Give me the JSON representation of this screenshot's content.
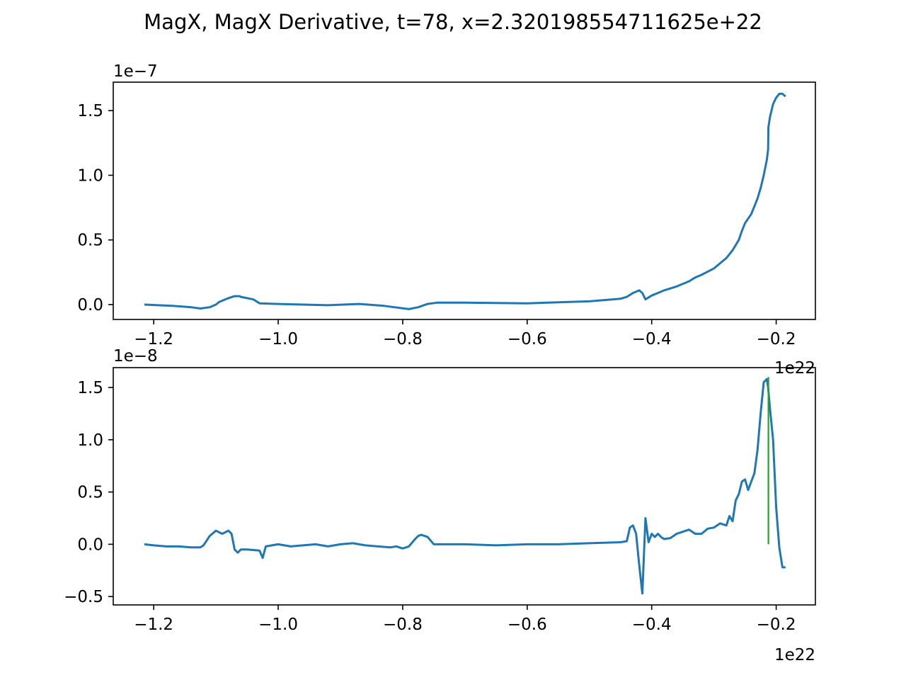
{
  "title": "MagX, MagX Derivative, t=78, x=2.320198554711625e+22",
  "colors": {
    "series": "#1f77b4",
    "marker": "#2ca02c",
    "axes": "#000000"
  },
  "chart_data": [
    {
      "type": "line",
      "title": "",
      "xlabel": "",
      "ylabel": "",
      "x_offset_label": "1e22",
      "y_offset_label": "1e−7",
      "xlim": [
        -1.265,
        -0.137
      ],
      "ylim": [
        -0.115,
        1.72
      ],
      "x_ticks": [
        -1.2,
        -1.0,
        -0.8,
        -0.6,
        -0.4,
        -0.2
      ],
      "x_tick_labels": [
        "−1.2",
        "−1.0",
        "−0.8",
        "−0.6",
        "−0.4",
        "−0.2"
      ],
      "y_ticks": [
        0.0,
        0.5,
        1.0,
        1.5
      ],
      "y_tick_labels": [
        "0.0",
        "0.5",
        "1.0",
        "1.5"
      ],
      "grid": false,
      "series": [
        {
          "x": [
            -1.215,
            -1.17,
            -1.14,
            -1.125,
            -1.11,
            -1.1,
            -1.095,
            -1.08,
            -1.07,
            -1.062,
            -1.06,
            -1.04,
            -1.03,
            -1.0,
            -0.92,
            -0.87,
            -0.83,
            -0.79,
            -0.775,
            -0.76,
            -0.745,
            -0.7,
            -0.6,
            -0.5,
            -0.45,
            -0.44,
            -0.43,
            -0.42,
            -0.415,
            -0.41,
            -0.4,
            -0.39,
            -0.38,
            -0.36,
            -0.34,
            -0.33,
            -0.32,
            -0.3,
            -0.29,
            -0.28,
            -0.27,
            -0.26,
            -0.255,
            -0.25,
            -0.24,
            -0.235,
            -0.23,
            -0.225,
            -0.22,
            -0.215,
            -0.213,
            -0.2125,
            -0.21,
            -0.205,
            -0.2,
            -0.195,
            -0.19,
            -0.185
          ],
          "y": [
            0.0,
            -0.01,
            -0.02,
            -0.03,
            -0.02,
            0.0,
            0.02,
            0.05,
            0.065,
            0.065,
            0.06,
            0.04,
            0.01,
            0.005,
            -0.005,
            0.005,
            -0.01,
            -0.035,
            -0.02,
            0.005,
            0.015,
            0.015,
            0.01,
            0.025,
            0.045,
            0.06,
            0.09,
            0.11,
            0.09,
            0.04,
            0.07,
            0.09,
            0.11,
            0.14,
            0.18,
            0.21,
            0.23,
            0.28,
            0.32,
            0.36,
            0.42,
            0.5,
            0.57,
            0.63,
            0.7,
            0.76,
            0.82,
            0.9,
            1.0,
            1.12,
            1.2,
            1.37,
            1.45,
            1.55,
            1.6,
            1.63,
            1.63,
            1.61
          ]
        }
      ]
    },
    {
      "type": "line",
      "title": "",
      "xlabel": "",
      "ylabel": "",
      "x_offset_label": "1e22",
      "y_offset_label": "1e−8",
      "xlim": [
        -1.265,
        -0.137
      ],
      "ylim": [
        -0.58,
        1.69
      ],
      "x_ticks": [
        -1.2,
        -1.0,
        -0.8,
        -0.6,
        -0.4,
        -0.2
      ],
      "x_tick_labels": [
        "−1.2",
        "−1.0",
        "−0.8",
        "−0.6",
        "−0.4",
        "−0.2"
      ],
      "y_ticks": [
        -0.5,
        0.0,
        0.5,
        1.0,
        1.5
      ],
      "y_tick_labels": [
        "−0.5",
        "0.0",
        "0.5",
        "1.0",
        "1.5"
      ],
      "grid": false,
      "series": [
        {
          "x": [
            -1.215,
            -1.2,
            -1.18,
            -1.16,
            -1.14,
            -1.125,
            -1.12,
            -1.11,
            -1.1,
            -1.09,
            -1.08,
            -1.075,
            -1.07,
            -1.065,
            -1.06,
            -1.05,
            -1.03,
            -1.025,
            -1.02,
            -1.0,
            -0.98,
            -0.96,
            -0.94,
            -0.92,
            -0.9,
            -0.88,
            -0.86,
            -0.84,
            -0.82,
            -0.81,
            -0.8,
            -0.79,
            -0.78,
            -0.775,
            -0.77,
            -0.76,
            -0.75,
            -0.7,
            -0.65,
            -0.6,
            -0.55,
            -0.5,
            -0.45,
            -0.44,
            -0.435,
            -0.43,
            -0.425,
            -0.42,
            -0.415,
            -0.41,
            -0.405,
            -0.4,
            -0.395,
            -0.39,
            -0.385,
            -0.38,
            -0.37,
            -0.36,
            -0.35,
            -0.34,
            -0.33,
            -0.32,
            -0.31,
            -0.3,
            -0.29,
            -0.28,
            -0.275,
            -0.27,
            -0.265,
            -0.26,
            -0.255,
            -0.25,
            -0.245,
            -0.24,
            -0.235,
            -0.23,
            -0.225,
            -0.22,
            -0.215,
            -0.213,
            -0.21,
            -0.205,
            -0.2,
            -0.195,
            -0.19,
            -0.185
          ],
          "y": [
            0.0,
            -0.01,
            -0.02,
            -0.02,
            -0.03,
            -0.03,
            -0.01,
            0.08,
            0.13,
            0.1,
            0.13,
            0.1,
            -0.05,
            -0.08,
            -0.05,
            -0.05,
            -0.06,
            -0.13,
            -0.02,
            0.0,
            -0.02,
            -0.01,
            0.0,
            -0.02,
            0.0,
            0.01,
            -0.01,
            -0.02,
            -0.03,
            -0.02,
            -0.04,
            -0.02,
            0.05,
            0.08,
            0.09,
            0.07,
            0.0,
            0.0,
            -0.01,
            0.0,
            0.0,
            0.01,
            0.02,
            0.03,
            0.16,
            0.18,
            0.1,
            -0.2,
            -0.47,
            0.25,
            0.02,
            0.1,
            0.07,
            0.1,
            0.07,
            0.05,
            0.06,
            0.1,
            0.12,
            0.14,
            0.1,
            0.1,
            0.15,
            0.16,
            0.2,
            0.18,
            0.27,
            0.22,
            0.42,
            0.48,
            0.6,
            0.62,
            0.52,
            0.6,
            0.68,
            0.9,
            1.25,
            1.55,
            1.58,
            1.5,
            1.3,
            1.0,
            0.35,
            -0.03,
            -0.22,
            -0.22
          ]
        }
      ],
      "marker_line": {
        "x": -0.2125,
        "y": [
          0.0,
          1.6
        ]
      }
    }
  ]
}
